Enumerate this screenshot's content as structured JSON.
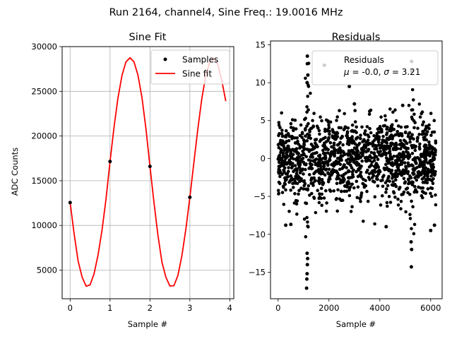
{
  "suptitle": "Run 2164, channel4, Sine Freq.: 19.0016 MHz",
  "chart_data": [
    {
      "type": "line",
      "title": "Sine Fit",
      "xlabel": "Sample #",
      "ylabel": "ADC Counts",
      "xlim": [
        -0.2,
        4.1
      ],
      "ylim": [
        1800,
        30000
      ],
      "xticks": [
        0,
        1,
        2,
        3,
        4
      ],
      "yticks": [
        5000,
        10000,
        15000,
        20000,
        25000,
        30000
      ],
      "grid": true,
      "legend": {
        "placement": "top-right",
        "entries": [
          "Samples",
          "Sine fit"
        ]
      },
      "series": [
        {
          "name": "Samples",
          "kind": "points",
          "color": "#000000",
          "x": [
            0,
            1,
            2,
            3
          ],
          "y": [
            12550,
            17150,
            16600,
            13150
          ]
        },
        {
          "name": "Sine fit",
          "kind": "line",
          "color": "#ff0000",
          "x": [
            0,
            0.1,
            0.2,
            0.3,
            0.4,
            0.5,
            0.6,
            0.7,
            0.8,
            0.9,
            1.0,
            1.1,
            1.2,
            1.3,
            1.4,
            1.5,
            1.6,
            1.7,
            1.8,
            1.9,
            2.0,
            2.1,
            2.2,
            2.3,
            2.4,
            2.5,
            2.6,
            2.7,
            2.8,
            2.9,
            3.0,
            3.1,
            3.2,
            3.3,
            3.4,
            3.5,
            3.6,
            3.7,
            3.8,
            3.9
          ],
          "y": [
            12550,
            9070,
            6020,
            4220,
            3200,
            3350,
            4600,
            6700,
            9500,
            13000,
            17150,
            21000,
            24300,
            26800,
            28300,
            28750,
            28300,
            26800,
            24300,
            20800,
            16600,
            12600,
            8900,
            5900,
            4200,
            3220,
            3260,
            4400,
            6600,
            9600,
            13150,
            17000,
            20800,
            24200,
            26800,
            28300,
            28700,
            28000,
            26200,
            23900
          ]
        }
      ]
    },
    {
      "type": "scatter",
      "title": "Residuals",
      "xlabel": "Sample #",
      "ylabel": "",
      "xlim": [
        -300,
        6450
      ],
      "ylim": [
        -18.5,
        15.5
      ],
      "xticks": [
        0,
        2000,
        4000,
        6000
      ],
      "yticks": [
        -15,
        -10,
        -5,
        0,
        5,
        10,
        15
      ],
      "grid": false,
      "n_points": 6200,
      "legend": {
        "placement": "top-right",
        "entries": [
          "Residuals",
          "μ = -0.0, σ = 3.21"
        ],
        "mean": "-0.0",
        "sigma": "3.21"
      },
      "highlights": [
        {
          "x": 1150,
          "y": 13.5
        },
        {
          "x": 1150,
          "y": 12.5
        },
        {
          "x": 1170,
          "y": 11.0
        },
        {
          "x": 1140,
          "y": 10.0
        },
        {
          "x": 1120,
          "y": -17.1
        },
        {
          "x": 1130,
          "y": -15.9
        },
        {
          "x": 1140,
          "y": -15.2
        },
        {
          "x": 1150,
          "y": -14.0
        },
        {
          "x": 1160,
          "y": -13.2
        },
        {
          "x": 1140,
          "y": -12.5
        },
        {
          "x": 1820,
          "y": 12.3
        },
        {
          "x": 2800,
          "y": 9.5
        },
        {
          "x": 5250,
          "y": 12.8
        },
        {
          "x": 5260,
          "y": 11.5
        },
        {
          "x": 5240,
          "y": -14.3
        },
        {
          "x": 5250,
          "y": -12.0
        },
        {
          "x": 5230,
          "y": -11.0
        },
        {
          "x": 300,
          "y": -8.8
        },
        {
          "x": 500,
          "y": -8.7
        },
        {
          "x": 4250,
          "y": -9.0
        },
        {
          "x": 6000,
          "y": -9.5
        },
        {
          "x": 6150,
          "y": -8.8
        },
        {
          "x": 3000,
          "y": 7.2
        },
        {
          "x": 4900,
          "y": 7.0
        }
      ]
    }
  ]
}
